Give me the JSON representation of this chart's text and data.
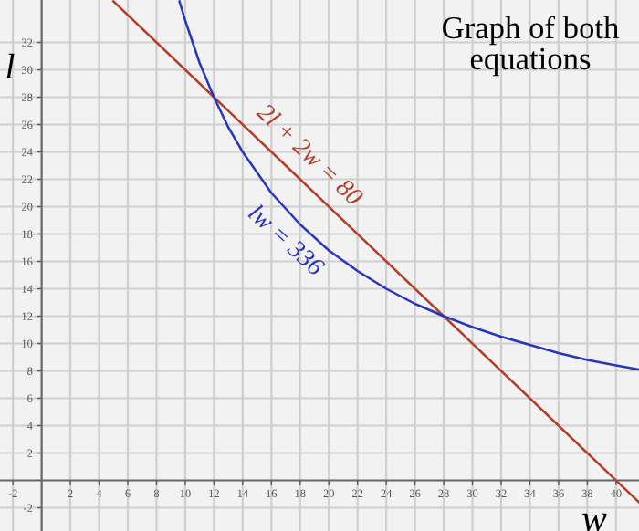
{
  "chart_data": {
    "type": "line",
    "title": "Graph of both\nequations",
    "xlabel": "w",
    "ylabel": "l",
    "xlim": [
      -2.9,
      41.6
    ],
    "ylim": [
      -3.7,
      35.1
    ],
    "xticks": [
      -2,
      2,
      4,
      6,
      8,
      10,
      12,
      14,
      16,
      18,
      20,
      22,
      24,
      26,
      28,
      30,
      32,
      34,
      36,
      38,
      40
    ],
    "yticks": [
      -2,
      2,
      4,
      6,
      8,
      10,
      12,
      14,
      16,
      18,
      20,
      22,
      24,
      26,
      28,
      30,
      32
    ],
    "grid": true,
    "legend": false,
    "marker": "none",
    "line_style": "solid",
    "series": [
      {
        "name": "2l + 2w = 80",
        "color": "#b0402c",
        "x": [
          5,
          12,
          17.5,
          28,
          35,
          41.6
        ],
        "values": [
          35,
          28,
          22.5,
          12,
          5,
          -1.6
        ]
      },
      {
        "name": "lw = 336",
        "color": "#2a35b8",
        "x": [
          9.6,
          10,
          11,
          12,
          13,
          14,
          16,
          18,
          20,
          22,
          24,
          26,
          28,
          30,
          32,
          34,
          36,
          38,
          40,
          41.6
        ],
        "values": [
          35,
          33.6,
          30.5,
          28,
          25.8,
          24,
          21,
          18.7,
          16.8,
          15.3,
          14,
          12.9,
          12,
          11.2,
          10.5,
          9.9,
          9.3,
          8.8,
          8.4,
          8.1
        ]
      }
    ]
  }
}
